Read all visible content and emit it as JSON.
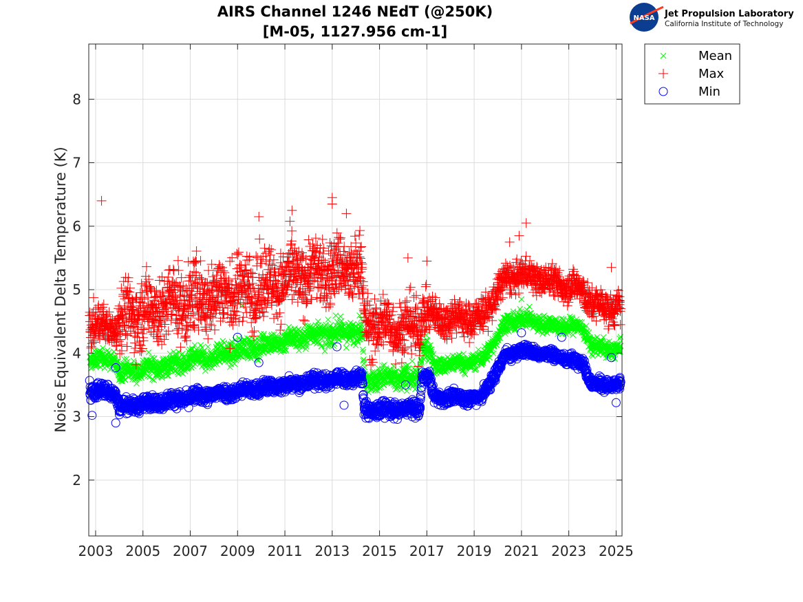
{
  "header": {
    "title_line1": "AIRS Channel 1246 NEdT (@250K)",
    "title_line2": "[M-05, 1127.956 cm-1]"
  },
  "logo": {
    "badge_text": "NASA",
    "org_name": "Jet Propulsion Laboratory",
    "org_sub": "California Institute of Technology"
  },
  "colors": {
    "mean": "#00ff00",
    "max": "#ff0000",
    "min": "#0000ff",
    "grid": "#dcdcdc",
    "axis": "#262626",
    "nasa_blue": "#0b3d91",
    "nasa_red": "#fc3d21"
  },
  "chart_data": {
    "type": "scatter",
    "title": "AIRS Channel 1246 NEdT (@250K) [M-05, 1127.956 cm-1]",
    "xlabel": "",
    "ylabel": "Noise Equivalent Delta Temperature (K)",
    "xlim": [
      2002.71,
      2025.25
    ],
    "ylim": [
      1.12,
      8.87
    ],
    "xticks": [
      2003,
      2005,
      2007,
      2009,
      2011,
      2013,
      2015,
      2017,
      2019,
      2021,
      2023,
      2025
    ],
    "xtick_labels": [
      "2003",
      "2005",
      "2007",
      "2009",
      "2011",
      "2013",
      "2015",
      "2017",
      "2019",
      "2021",
      "2023",
      "2025"
    ],
    "yticks": [
      2,
      3,
      4,
      5,
      6,
      7,
      8
    ],
    "ytick_labels": [
      "2",
      "3",
      "4",
      "5",
      "6",
      "7",
      "8"
    ],
    "grid": true,
    "legend": {
      "position": "outside-top-right",
      "entries": [
        "Mean",
        "Max",
        "Min"
      ]
    },
    "series": [
      {
        "name": "Mean",
        "marker": "x",
        "trend": [
          {
            "x": 2002.75,
            "y": 3.9,
            "spread": 0.12
          },
          {
            "x": 2003.8,
            "y": 3.9,
            "spread": 0.12
          },
          {
            "x": 2004.0,
            "y": 3.7,
            "spread": 0.14
          },
          {
            "x": 2006.0,
            "y": 3.8,
            "spread": 0.15
          },
          {
            "x": 2008.0,
            "y": 3.95,
            "spread": 0.15
          },
          {
            "x": 2010.0,
            "y": 4.12,
            "spread": 0.15
          },
          {
            "x": 2012.0,
            "y": 4.28,
            "spread": 0.16
          },
          {
            "x": 2014.25,
            "y": 4.35,
            "spread": 0.16
          },
          {
            "x": 2014.35,
            "y": 3.6,
            "spread": 0.16
          },
          {
            "x": 2016.7,
            "y": 3.6,
            "spread": 0.16
          },
          {
            "x": 2016.8,
            "y": 4.1,
            "spread": 0.14
          },
          {
            "x": 2017.1,
            "y": 4.05,
            "spread": 0.14
          },
          {
            "x": 2017.3,
            "y": 3.8,
            "spread": 0.12
          },
          {
            "x": 2019.3,
            "y": 3.88,
            "spread": 0.12
          },
          {
            "x": 2020.3,
            "y": 4.45,
            "spread": 0.12
          },
          {
            "x": 2021.0,
            "y": 4.55,
            "spread": 0.12
          },
          {
            "x": 2022.0,
            "y": 4.45,
            "spread": 0.12
          },
          {
            "x": 2023.6,
            "y": 4.4,
            "spread": 0.12
          },
          {
            "x": 2024.0,
            "y": 4.1,
            "spread": 0.12
          },
          {
            "x": 2025.2,
            "y": 4.05,
            "spread": 0.12
          }
        ],
        "outliers": [
          {
            "x": 2009.2,
            "y": 4.75
          },
          {
            "x": 2021.0,
            "y": 4.85
          },
          {
            "x": 2017.0,
            "y": 4.4
          }
        ]
      },
      {
        "name": "Max",
        "marker": "+",
        "trend": [
          {
            "x": 2002.75,
            "y": 4.45,
            "spread": 0.3
          },
          {
            "x": 2003.8,
            "y": 4.4,
            "spread": 0.2
          },
          {
            "x": 2004.0,
            "y": 4.55,
            "spread": 0.45
          },
          {
            "x": 2006.0,
            "y": 4.75,
            "spread": 0.5
          },
          {
            "x": 2008.0,
            "y": 4.9,
            "spread": 0.5
          },
          {
            "x": 2010.0,
            "y": 5.05,
            "spread": 0.5
          },
          {
            "x": 2012.0,
            "y": 5.25,
            "spread": 0.45
          },
          {
            "x": 2014.25,
            "y": 5.35,
            "spread": 0.45
          },
          {
            "x": 2014.35,
            "y": 4.45,
            "spread": 0.4
          },
          {
            "x": 2016.7,
            "y": 4.4,
            "spread": 0.4
          },
          {
            "x": 2016.8,
            "y": 4.7,
            "spread": 0.3
          },
          {
            "x": 2017.3,
            "y": 4.55,
            "spread": 0.25
          },
          {
            "x": 2019.3,
            "y": 4.55,
            "spread": 0.25
          },
          {
            "x": 2020.3,
            "y": 5.15,
            "spread": 0.22
          },
          {
            "x": 2021.0,
            "y": 5.25,
            "spread": 0.2
          },
          {
            "x": 2022.0,
            "y": 5.15,
            "spread": 0.2
          },
          {
            "x": 2023.6,
            "y": 5.0,
            "spread": 0.22
          },
          {
            "x": 2024.0,
            "y": 4.75,
            "spread": 0.22
          },
          {
            "x": 2025.2,
            "y": 4.7,
            "spread": 0.22
          }
        ],
        "outliers": [
          {
            "x": 2003.25,
            "y": 6.4
          },
          {
            "x": 2009.9,
            "y": 6.15
          },
          {
            "x": 2011.3,
            "y": 6.25
          },
          {
            "x": 2013.0,
            "y": 6.45
          },
          {
            "x": 2013.0,
            "y": 6.35
          },
          {
            "x": 2013.6,
            "y": 6.2
          },
          {
            "x": 2016.2,
            "y": 5.5
          },
          {
            "x": 2017.0,
            "y": 5.45
          },
          {
            "x": 2020.5,
            "y": 5.75
          },
          {
            "x": 2020.9,
            "y": 5.85
          },
          {
            "x": 2021.2,
            "y": 6.05
          },
          {
            "x": 2024.8,
            "y": 5.35
          }
        ]
      },
      {
        "name": "Min",
        "marker": "o",
        "trend": [
          {
            "x": 2002.75,
            "y": 3.4,
            "spread": 0.12
          },
          {
            "x": 2003.8,
            "y": 3.4,
            "spread": 0.1
          },
          {
            "x": 2004.0,
            "y": 3.15,
            "spread": 0.1
          },
          {
            "x": 2006.0,
            "y": 3.25,
            "spread": 0.1
          },
          {
            "x": 2008.0,
            "y": 3.35,
            "spread": 0.1
          },
          {
            "x": 2010.0,
            "y": 3.45,
            "spread": 0.1
          },
          {
            "x": 2012.0,
            "y": 3.55,
            "spread": 0.1
          },
          {
            "x": 2014.25,
            "y": 3.62,
            "spread": 0.1
          },
          {
            "x": 2014.35,
            "y": 3.1,
            "spread": 0.11
          },
          {
            "x": 2016.7,
            "y": 3.12,
            "spread": 0.11
          },
          {
            "x": 2016.8,
            "y": 3.65,
            "spread": 0.08
          },
          {
            "x": 2017.1,
            "y": 3.62,
            "spread": 0.08
          },
          {
            "x": 2017.3,
            "y": 3.3,
            "spread": 0.09
          },
          {
            "x": 2019.3,
            "y": 3.3,
            "spread": 0.09
          },
          {
            "x": 2020.3,
            "y": 3.95,
            "spread": 0.09
          },
          {
            "x": 2021.0,
            "y": 4.05,
            "spread": 0.08
          },
          {
            "x": 2022.5,
            "y": 3.95,
            "spread": 0.08
          },
          {
            "x": 2023.6,
            "y": 3.85,
            "spread": 0.08
          },
          {
            "x": 2024.0,
            "y": 3.5,
            "spread": 0.09
          },
          {
            "x": 2025.2,
            "y": 3.5,
            "spread": 0.09
          }
        ],
        "outliers": [
          {
            "x": 2002.85,
            "y": 3.02
          },
          {
            "x": 2003.85,
            "y": 3.77
          },
          {
            "x": 2003.85,
            "y": 2.9
          },
          {
            "x": 2009.0,
            "y": 4.25
          },
          {
            "x": 2009.9,
            "y": 3.85
          },
          {
            "x": 2013.2,
            "y": 4.1
          },
          {
            "x": 2013.5,
            "y": 3.18
          },
          {
            "x": 2016.1,
            "y": 3.5
          },
          {
            "x": 2021.0,
            "y": 4.32
          },
          {
            "x": 2022.7,
            "y": 4.25
          },
          {
            "x": 2024.8,
            "y": 3.93
          },
          {
            "x": 2025.0,
            "y": 3.22
          }
        ]
      }
    ]
  }
}
